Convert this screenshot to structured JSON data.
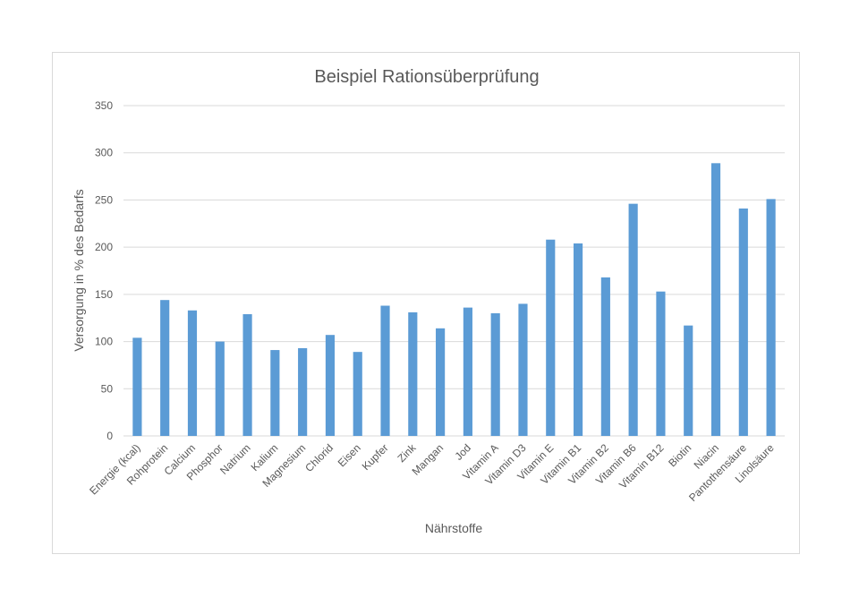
{
  "chart_data": {
    "type": "bar",
    "title": "Beispiel Rationsüberprüfung",
    "xlabel": "Nährstoffe",
    "ylabel": "Versorgung in % des Bedarfs",
    "ylim": [
      0,
      350
    ],
    "yticks": [
      0,
      50,
      100,
      150,
      200,
      250,
      300,
      350
    ],
    "grid": true,
    "legend": "none",
    "bar_color": "#5b9bd5",
    "categories": [
      "Energie (kcal)",
      "Rohprotein",
      "Calcium",
      "Phosphor",
      "Natrium",
      "Kalium",
      "Magnesium",
      "Chlorid",
      "Eisen",
      "Kupfer",
      "Zink",
      "Mangan",
      "Jod",
      "Vitamin A",
      "Vitamin D3",
      "Vitamin E",
      "Vitamin B1",
      "Vitamin B2",
      "Vitamin B6",
      "Vitamin B12",
      "Biotin",
      "Niacin",
      "Pantothensäure",
      "Linolsäure"
    ],
    "values": [
      104,
      144,
      133,
      100,
      129,
      91,
      93,
      107,
      89,
      138,
      131,
      114,
      136,
      130,
      140,
      208,
      204,
      168,
      246,
      153,
      117,
      289,
      241,
      251
    ]
  }
}
